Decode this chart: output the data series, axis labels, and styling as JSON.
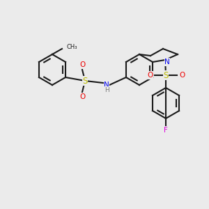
{
  "bg_color": "#ebebeb",
  "bond_color": "#1a1a1a",
  "bond_lw": 1.5,
  "atom_colors": {
    "N": "#0000ee",
    "O": "#ee0000",
    "S": "#bbbb00",
    "F": "#dd00dd",
    "H": "#777777",
    "C": "#1a1a1a"
  },
  "font_size": 7.5,
  "font_size_small": 6.5
}
